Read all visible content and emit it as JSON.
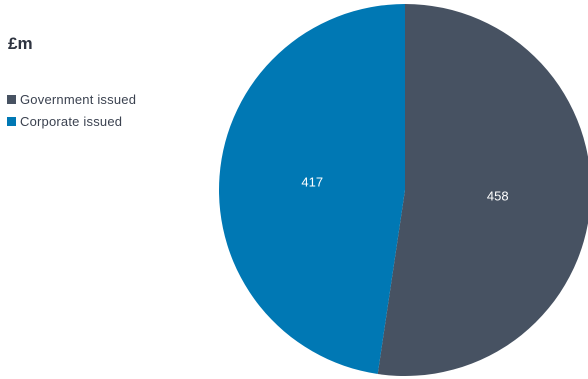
{
  "chart_data": {
    "type": "pie",
    "title": "£m",
    "legend_position": "top-left",
    "slices": [
      {
        "name": "Government issued",
        "value": 458,
        "label": "458",
        "color": "#475262"
      },
      {
        "name": "Corporate issued",
        "value": 417,
        "label": "417",
        "color": "#0078b4"
      }
    ]
  }
}
